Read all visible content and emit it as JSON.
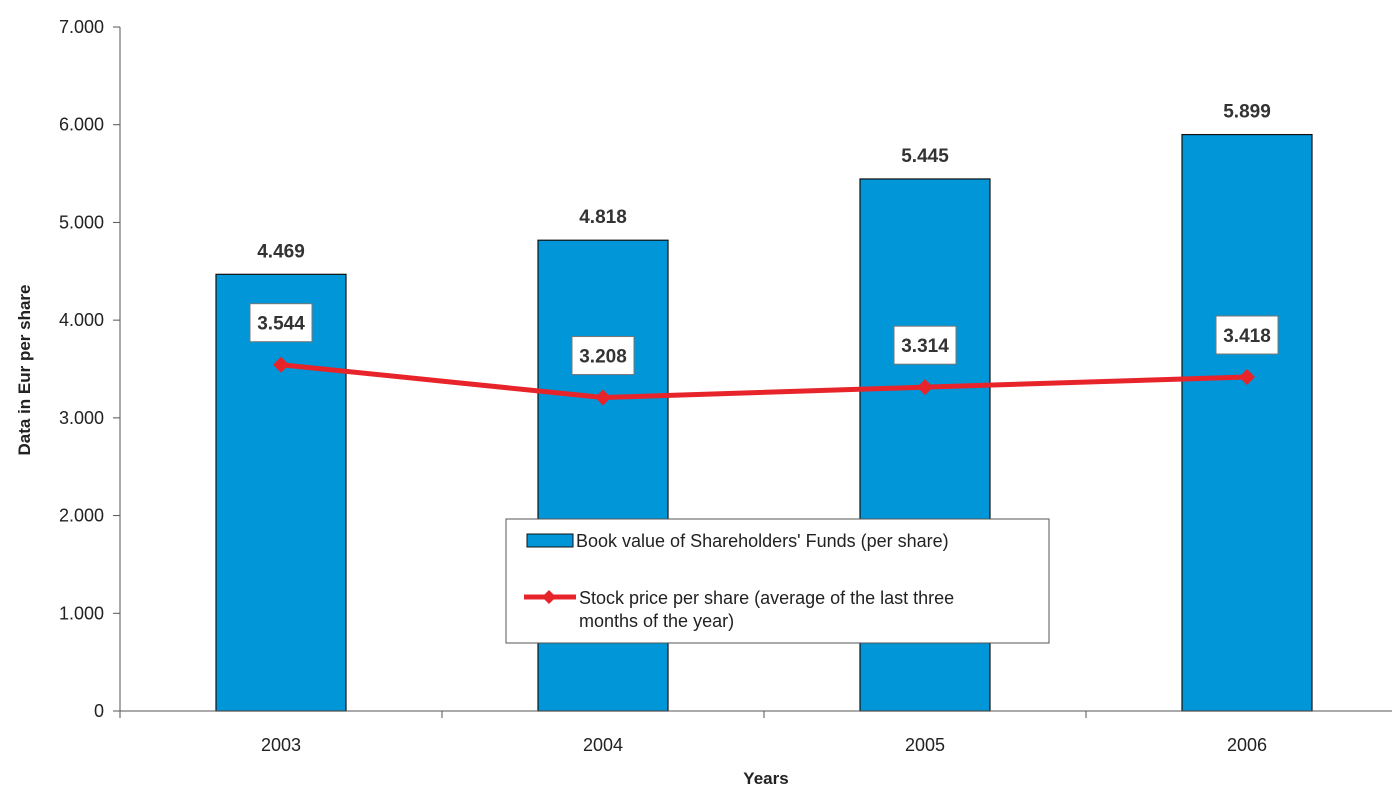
{
  "chart_data": {
    "type": "bar",
    "categories": [
      "2003",
      "2004",
      "2005",
      "2006"
    ],
    "xlabel": "Years",
    "ylabel": "Data in Eur per share",
    "ylim": [
      0,
      7
    ],
    "yticks": [
      0,
      1,
      2,
      3,
      4,
      5,
      6,
      7
    ],
    "ytick_labels": [
      "0",
      "1.000",
      "2.000",
      "3.000",
      "4.000",
      "5.000",
      "6.000",
      "7.000"
    ],
    "grid": false,
    "legend_position": "center-bottom",
    "series": [
      {
        "name": "Book value of Shareholders' Funds (per share)",
        "type": "bar",
        "color": "#0096D8",
        "values": [
          4.469,
          4.818,
          5.445,
          5.899
        ],
        "labels": [
          "4.469",
          "4.818",
          "5.445",
          "5.899"
        ]
      },
      {
        "name": "Stock price per share (average of the last three months of the year)",
        "legend_lines": [
          "Stock price per share (average of the last three",
          "months of the year)"
        ],
        "type": "line",
        "color": "#E8242B",
        "marker": "diamond",
        "values": [
          3.544,
          3.208,
          3.314,
          3.418
        ],
        "labels": [
          "3.544",
          "3.208",
          "3.314",
          "3.418"
        ]
      }
    ]
  }
}
